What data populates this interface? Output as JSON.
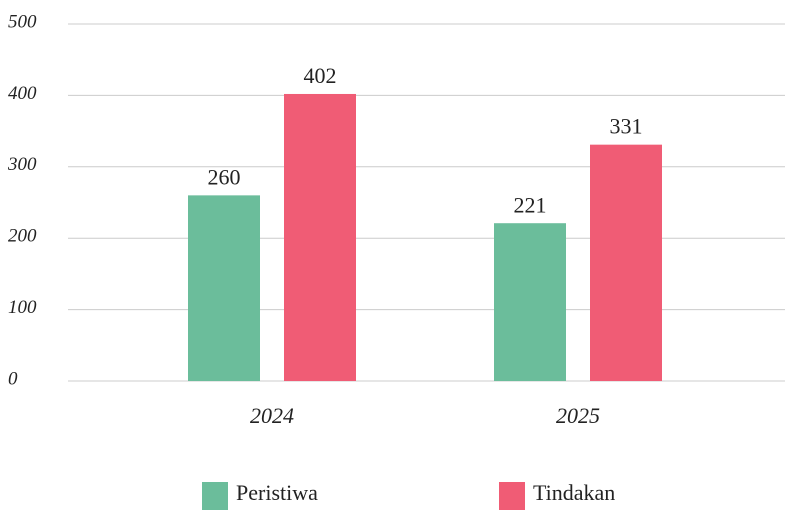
{
  "chart_data": {
    "type": "bar",
    "categories": [
      "2024",
      "2025"
    ],
    "series": [
      {
        "name": "Peristiwa",
        "color": "#6bbd9b",
        "values": [
          260,
          221
        ]
      },
      {
        "name": "Tindakan",
        "color": "#f05c75",
        "values": [
          402,
          331
        ]
      }
    ],
    "ylim": [
      0,
      500
    ],
    "yticks": [
      0,
      100,
      200,
      300,
      400,
      500
    ],
    "grid": true,
    "legend": "bottom"
  }
}
